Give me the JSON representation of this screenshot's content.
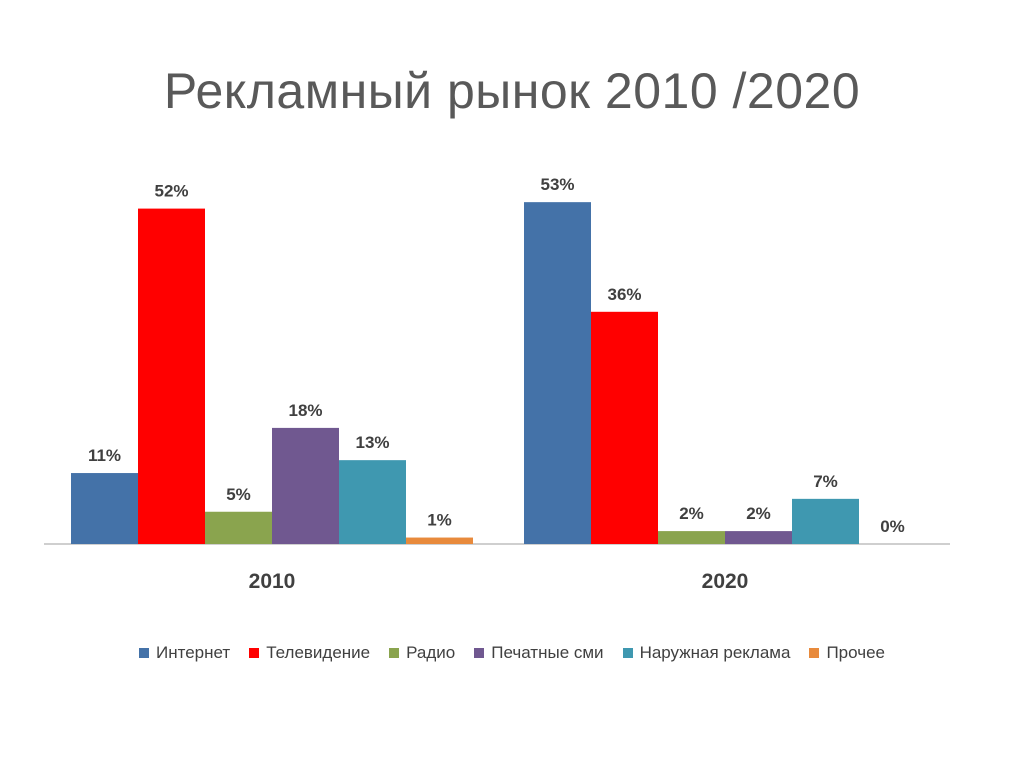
{
  "slide": {
    "title": "Рекламный рынок  2010 /2020"
  },
  "chart_data": {
    "type": "bar",
    "categories": [
      "2010",
      "2020"
    ],
    "series": [
      {
        "name": "Интернет",
        "color": "#4472a8",
        "values": [
          11,
          53
        ],
        "labels": [
          "11%",
          "53%"
        ]
      },
      {
        "name": "Телевидение",
        "color": "#ff0000",
        "values": [
          52,
          36
        ],
        "labels": [
          "52%",
          "36%"
        ]
      },
      {
        "name": "Радио",
        "color": "#8aa44e",
        "values": [
          5,
          2
        ],
        "labels": [
          "5%",
          "2%"
        ]
      },
      {
        "name": "Печатные сми",
        "color": "#705890",
        "values": [
          18,
          2
        ],
        "labels": [
          "18%",
          "2%"
        ]
      },
      {
        "name": "Наружная реклама",
        "color": "#3f98b0",
        "values": [
          13,
          7
        ],
        "labels": [
          "13%",
          "7%"
        ]
      },
      {
        "name": "Прочее",
        "color": "#e88a3c",
        "values": [
          1,
          0
        ],
        "labels": [
          "1%",
          "0%"
        ]
      }
    ],
    "ylim": [
      0,
      60
    ],
    "grid": false,
    "legend_position": "bottom"
  }
}
